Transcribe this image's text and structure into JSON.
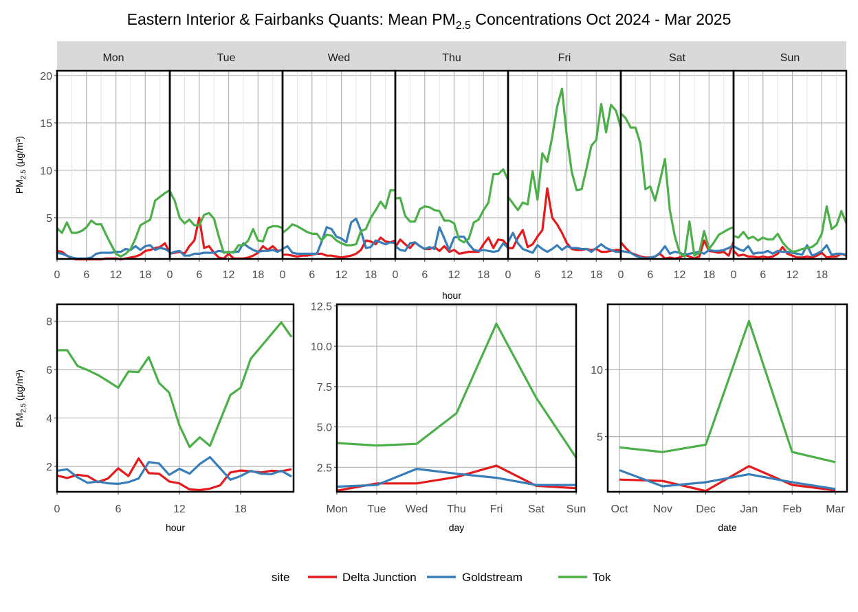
{
  "title": {
    "main": "Eastern Interior & Fairbanks Quants: Mean PM",
    "sub": "2.5",
    "rest": " Concentrations Oct 2024 - Mar 2025"
  },
  "ylabel": {
    "main": "PM",
    "sub": "2.5",
    "unit": " (µg/m³)"
  },
  "legend": {
    "title": "site",
    "entries": [
      "Delta Junction",
      "Goldstream",
      "Tok"
    ]
  },
  "colors": {
    "Delta Junction": "#E41A1C",
    "Goldstream": "#377EB8",
    "Tok": "#4DAF4A"
  },
  "chart_data": [
    {
      "type": "line",
      "facets": [
        "Mon",
        "Tue",
        "Wed",
        "Thu",
        "Fri",
        "Sat",
        "Sun"
      ],
      "xlabel": "hour",
      "xticks": [
        0,
        6,
        12,
        18
      ],
      "yticks": [
        5,
        10,
        15,
        20
      ],
      "xlim": [
        0,
        23
      ],
      "ylim": [
        0.65,
        20.5
      ],
      "grid": true,
      "series": [
        {
          "name": "Delta Junction",
          "values": [
            [
              1.5,
              1.4,
              1.0,
              0.7,
              0.6,
              0.6,
              0.6,
              0.6,
              0.6,
              0.6,
              0.7,
              0.7,
              0.7,
              0.6,
              0.7,
              0.8,
              0.9,
              1.1,
              1.5,
              1.6,
              1.8,
              1.9,
              2.3,
              1.3
            ],
            [
              1.2,
              1.3,
              1.4,
              1.2,
              2.0,
              2.6,
              5.0,
              1.8,
              2.0,
              1.3,
              0.8,
              0.7,
              1.2,
              0.7,
              0.7,
              0.7,
              0.8,
              1.0,
              1.3,
              2.0,
              1.6,
              2.0,
              1.5,
              1.6
            ],
            [
              1.1,
              1.1,
              1.0,
              0.9,
              1.0,
              1.0,
              1.1,
              1.2,
              1.2,
              1.0,
              1.0,
              0.9,
              0.8,
              0.9,
              1.0,
              1.2,
              1.6,
              2.6,
              2.5,
              2.2,
              2.9,
              2.5,
              2.4,
              2.6
            ],
            [
              1.9,
              2.7,
              2.2,
              1.8,
              2.4,
              2.0,
              1.7,
              1.7,
              1.9,
              1.5,
              2.0,
              1.4,
              1.6,
              1.2,
              1.3,
              1.4,
              1.4,
              1.4,
              2.2,
              2.9,
              1.8,
              2.7,
              2.6,
              2.0
            ],
            [
              1.8,
              1.8,
              2.9,
              3.7,
              1.9,
              2.2,
              3.0,
              3.7,
              8.1,
              5.0,
              4.3,
              3.4,
              2.3,
              1.7,
              1.6,
              1.6,
              1.7,
              1.6,
              1.7,
              1.4,
              1.4,
              1.5,
              1.6,
              1.6
            ],
            [
              2.4,
              1.8,
              1.3,
              1.1,
              0.9,
              0.8,
              0.8,
              0.9,
              1.2,
              0.7,
              0.8,
              0.7,
              0.8,
              1.1,
              0.9,
              0.7,
              0.9,
              2.6,
              1.5,
              1.4,
              1.3,
              1.4,
              1.0,
              2.5
            ],
            [
              1.5,
              1.0,
              1.1,
              0.9,
              0.9,
              0.8,
              0.9,
              0.8,
              0.9,
              1.2,
              1.9,
              1.2,
              1.0,
              0.8,
              0.8,
              0.9,
              0.8,
              1.0,
              1.3,
              0.8,
              0.9,
              0.9,
              1.2,
              1.0
            ]
          ]
        },
        {
          "name": "Goldstream",
          "values": [
            [
              1.3,
              1.2,
              1.0,
              0.8,
              0.7,
              0.7,
              0.7,
              0.8,
              1.2,
              1.3,
              1.3,
              1.3,
              1.4,
              1.4,
              1.7,
              1.6,
              2.0,
              1.6,
              2.0,
              2.1,
              1.6,
              1.8,
              1.7,
              1.4
            ],
            [
              1.2,
              1.4,
              1.5,
              1.0,
              1.0,
              1.2,
              1.2,
              1.3,
              1.3,
              1.3,
              1.5,
              1.4,
              1.3,
              1.4,
              1.4,
              2.3,
              1.9,
              1.6,
              1.4,
              1.5,
              1.5,
              1.6,
              1.4,
              1.7
            ],
            [
              1.7,
              2.0,
              1.3,
              1.2,
              1.2,
              1.2,
              1.2,
              1.2,
              2.5,
              4.0,
              3.8,
              3.0,
              2.8,
              2.4,
              4.5,
              4.9,
              3.6,
              1.8,
              1.9,
              2.6,
              2.4,
              2.2,
              2.4,
              2.3
            ],
            [
              2.0,
              1.6,
              1.5,
              2.3,
              2.4,
              2.0,
              1.7,
              1.9,
              1.7,
              4.0,
              2.8,
              1.6,
              2.9,
              3.0,
              3.0,
              2.2,
              1.6,
              1.5,
              1.6,
              1.5,
              1.4,
              1.5,
              2.3,
              1.8
            ],
            [
              2.4,
              3.4,
              2.3,
              1.7,
              1.5,
              1.3,
              2.1,
              1.7,
              1.4,
              1.7,
              2.1,
              1.6,
              2.0,
              1.8,
              1.8,
              1.7,
              1.7,
              1.4,
              1.8,
              2.2,
              1.8,
              1.6,
              1.4,
              1.4
            ],
            [
              1.5,
              1.4,
              1.3,
              1.0,
              0.8,
              0.7,
              0.8,
              0.9,
              1.3,
              2.0,
              1.2,
              1.4,
              1.3,
              1.1,
              1.2,
              1.3,
              1.4,
              1.2,
              1.6,
              1.5,
              1.5,
              1.6,
              1.8,
              2.1
            ],
            [
              2.0,
              1.7,
              1.5,
              2.0,
              1.2,
              1.3,
              1.3,
              1.5,
              1.2,
              1.5,
              1.4,
              1.4,
              1.3,
              1.2,
              1.1,
              2.1,
              1.0,
              1.2,
              1.5,
              2.1,
              1.1,
              1.2,
              1.2,
              1.1
            ]
          ]
        },
        {
          "name": "Tok",
          "values": [
            [
              3.9,
              3.4,
              4.5,
              3.4,
              3.4,
              3.6,
              4.0,
              4.7,
              4.3,
              4.3,
              3.2,
              2.2,
              1.2,
              0.9,
              1.2,
              1.7,
              2.8,
              4.2,
              4.5,
              4.8,
              6.8,
              7.2,
              7.6,
              7.9
            ],
            [
              7.8,
              6.8,
              5.0,
              4.4,
              4.8,
              4.2,
              4.2,
              5.3,
              5.5,
              4.9,
              3.0,
              1.3,
              1.4,
              1.3,
              2.1,
              2.1,
              2.6,
              3.8,
              2.6,
              2.5,
              3.9,
              4.1,
              4.1,
              3.9
            ],
            [
              3.4,
              3.8,
              4.3,
              4.1,
              3.8,
              3.5,
              3.3,
              3.3,
              2.6,
              3.2,
              3.1,
              2.6,
              2.3,
              2.1,
              2.1,
              2.2,
              3.6,
              3.8,
              5.0,
              5.8,
              6.7,
              6.0,
              7.9,
              7.9
            ],
            [
              7.0,
              7.1,
              5.2,
              4.6,
              4.6,
              5.9,
              6.2,
              6.1,
              5.8,
              5.7,
              4.7,
              4.7,
              4.4,
              2.7,
              2.4,
              2.8,
              4.5,
              4.8,
              5.8,
              6.6,
              9.6,
              9.6,
              10.1,
              9.0
            ],
            [
              7.2,
              6.5,
              5.8,
              6.6,
              6.4,
              9.9,
              6.9,
              11.8,
              10.9,
              13.5,
              16.7,
              18.6,
              13.5,
              9.8,
              7.9,
              8.0,
              10.2,
              12.6,
              13.2,
              17.0,
              14.0,
              16.9,
              16.3,
              14.5
            ],
            [
              16.0,
              15.5,
              14.5,
              14.5,
              12.8,
              8.0,
              8.3,
              6.8,
              8.9,
              11.2,
              5.8,
              3.1,
              1.3,
              0.9,
              4.6,
              1.0,
              1.3,
              3.6,
              1.7,
              2.4,
              3.2,
              3.5,
              3.8,
              4.0
            ],
            [
              3.1,
              2.9,
              3.5,
              2.8,
              3.0,
              2.6,
              2.9,
              2.7,
              2.7,
              3.3,
              2.4,
              1.8,
              1.4,
              1.5,
              1.7,
              1.8,
              1.9,
              2.3,
              3.3,
              6.2,
              3.8,
              4.2,
              5.7,
              4.4
            ]
          ]
        }
      ]
    },
    {
      "type": "line",
      "xlabel": "hour",
      "x": [
        0,
        1,
        2,
        3,
        4,
        5,
        6,
        7,
        8,
        9,
        10,
        11,
        12,
        13,
        14,
        15,
        16,
        17,
        18,
        19,
        20,
        21,
        22,
        23
      ],
      "xticks": [
        0,
        6,
        12,
        18
      ],
      "yticks": [
        2,
        4,
        6,
        8
      ],
      "xlim": [
        0,
        23.2
      ],
      "ylim": [
        0.95,
        8.7
      ],
      "grid": true,
      "series": [
        {
          "name": "Delta Junction",
          "values": [
            1.62,
            1.52,
            1.65,
            1.6,
            1.35,
            1.5,
            1.92,
            1.6,
            2.33,
            1.72,
            1.7,
            1.38,
            1.3,
            1.05,
            1.02,
            1.08,
            1.22,
            1.75,
            1.83,
            1.8,
            1.75,
            1.82,
            1.8,
            1.88
          ]
        },
        {
          "name": "Goldstream",
          "values": [
            1.82,
            1.88,
            1.55,
            1.32,
            1.38,
            1.3,
            1.28,
            1.35,
            1.5,
            2.18,
            2.12,
            1.65,
            1.9,
            1.7,
            2.1,
            2.38,
            1.92,
            1.45,
            1.6,
            1.82,
            1.7,
            1.68,
            1.82,
            1.58
          ]
        },
        {
          "name": "Tok",
          "values": [
            6.8,
            6.8,
            6.15,
            5.98,
            5.78,
            5.52,
            5.25,
            5.92,
            5.9,
            6.52,
            5.45,
            5.05,
            3.7,
            2.8,
            3.2,
            2.85,
            3.9,
            4.95,
            5.25,
            6.45,
            6.95,
            7.45,
            7.95,
            7.35
          ]
        }
      ]
    },
    {
      "type": "line",
      "xlabel": "day",
      "categories": [
        "Mon",
        "Tue",
        "Wed",
        "Thu",
        "Fri",
        "Sat",
        "Sun"
      ],
      "yticks": [
        "2.5",
        "5.0",
        "7.5",
        "10.0",
        "12.5"
      ],
      "ylim": [
        0.98,
        12.6
      ],
      "grid": true,
      "series": [
        {
          "name": "Delta Junction",
          "values": [
            1.05,
            1.5,
            1.5,
            1.9,
            2.6,
            1.35,
            1.2
          ]
        },
        {
          "name": "Goldstream",
          "values": [
            1.3,
            1.4,
            2.4,
            2.1,
            1.85,
            1.4,
            1.4
          ]
        },
        {
          "name": "Tok",
          "values": [
            4.0,
            3.85,
            3.95,
            5.85,
            11.4,
            6.8,
            3.1
          ]
        }
      ]
    },
    {
      "type": "line",
      "xlabel": "date",
      "categories": [
        "Oct",
        "Nov",
        "Dec",
        "Jan",
        "Feb",
        "Mar"
      ],
      "yticks": [
        "5",
        "10"
      ],
      "ylim": [
        0.89,
        14.85
      ],
      "grid": true,
      "series": [
        {
          "name": "Delta Junction",
          "values": [
            1.8,
            1.7,
            0.95,
            2.8,
            1.4,
            1.0
          ]
        },
        {
          "name": "Goldstream",
          "values": [
            2.5,
            1.3,
            1.6,
            2.2,
            1.6,
            1.1
          ]
        },
        {
          "name": "Tok",
          "values": [
            4.2,
            3.85,
            4.4,
            13.6,
            3.85,
            3.1
          ]
        }
      ]
    }
  ]
}
